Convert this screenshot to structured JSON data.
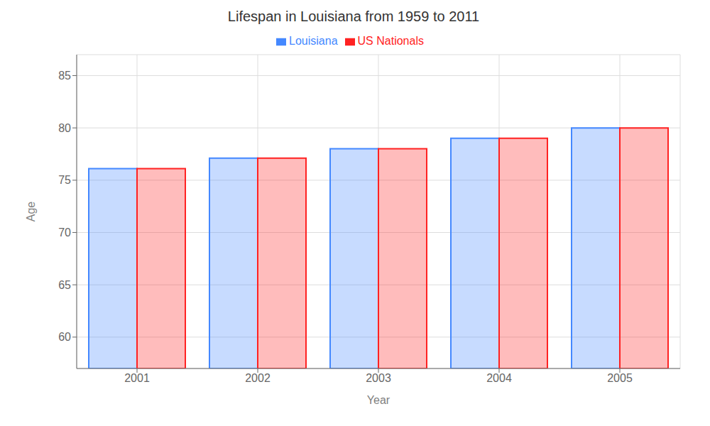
{
  "chart_data": {
    "type": "bar",
    "title": "Lifespan in Louisiana from 1959 to 2011",
    "x_label": "Year",
    "y_label": "Age",
    "categories": [
      "2001",
      "2002",
      "2003",
      "2004",
      "2005"
    ],
    "series": [
      {
        "name": "Louisiana",
        "color": "#4488ff",
        "values": [
          76.1,
          77.1,
          78.0,
          79.0,
          80.0
        ]
      },
      {
        "name": "US Nationals",
        "color": "#ff2222",
        "values": [
          76.1,
          77.1,
          78.0,
          79.0,
          80.0
        ]
      }
    ],
    "ylim": [
      57,
      87
    ],
    "yticks": [
      60,
      65,
      70,
      75,
      80,
      85
    ],
    "grid": true,
    "legend": "top"
  }
}
